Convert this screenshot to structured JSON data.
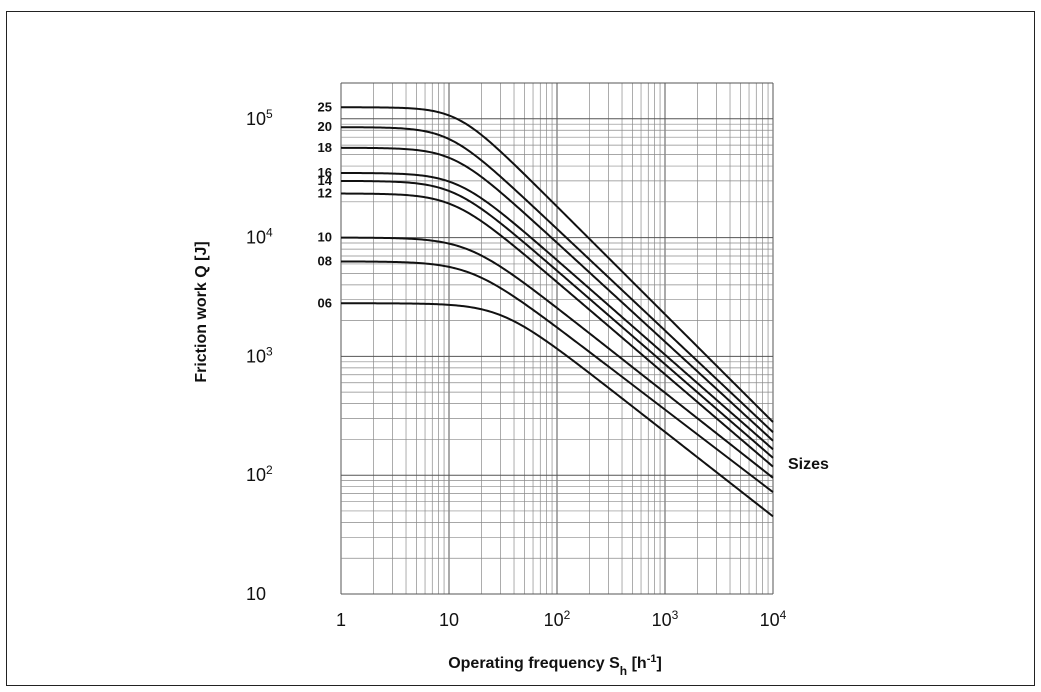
{
  "chart_data": {
    "type": "line",
    "title": "",
    "xlabel": "Operating frequency S",
    "xlabel_sub": "h",
    "xlabel_unit_pre": " [h",
    "xlabel_unit_sup": "-1",
    "xlabel_unit_post": "]",
    "ylabel": "Friction work Q [J]",
    "xscale": "log",
    "yscale": "log",
    "xlim": [
      1,
      10000
    ],
    "ylim": [
      10,
      200000
    ],
    "grid": true,
    "x_ticks": [
      {
        "base": "1",
        "exp": ""
      },
      {
        "base": "10",
        "exp": ""
      },
      {
        "base": "10",
        "exp": "2"
      },
      {
        "base": "10",
        "exp": "3"
      },
      {
        "base": "10",
        "exp": "4"
      }
    ],
    "y_ticks": [
      {
        "base": "10",
        "exp": ""
      },
      {
        "base": "10",
        "exp": "2"
      },
      {
        "base": "10",
        "exp": "3"
      },
      {
        "base": "10",
        "exp": "4"
      },
      {
        "base": "10",
        "exp": "5"
      }
    ],
    "annotation": "Sizes",
    "series": [
      {
        "name": "25",
        "Qmax": 125000,
        "x_knee": 12,
        "Q_at_1e4": 280
      },
      {
        "name": "20",
        "Qmax": 85000,
        "x_knee": 10,
        "Q_at_1e4": 230
      },
      {
        "name": "18",
        "Qmax": 57000,
        "x_knee": 11,
        "Q_at_1e4": 195
      },
      {
        "name": "16",
        "Qmax": 35000,
        "x_knee": 12,
        "Q_at_1e4": 165
      },
      {
        "name": "14",
        "Qmax": 30000,
        "x_knee": 11,
        "Q_at_1e4": 140
      },
      {
        "name": "12",
        "Qmax": 23500,
        "x_knee": 11,
        "Q_at_1e4": 118
      },
      {
        "name": "10",
        "Qmax": 10000,
        "x_knee": 15,
        "Q_at_1e4": 95
      },
      {
        "name": "08",
        "Qmax": 6300,
        "x_knee": 16,
        "Q_at_1e4": 72
      },
      {
        "name": "06",
        "Qmax": 2800,
        "x_knee": 30,
        "Q_at_1e4": 45
      }
    ]
  }
}
